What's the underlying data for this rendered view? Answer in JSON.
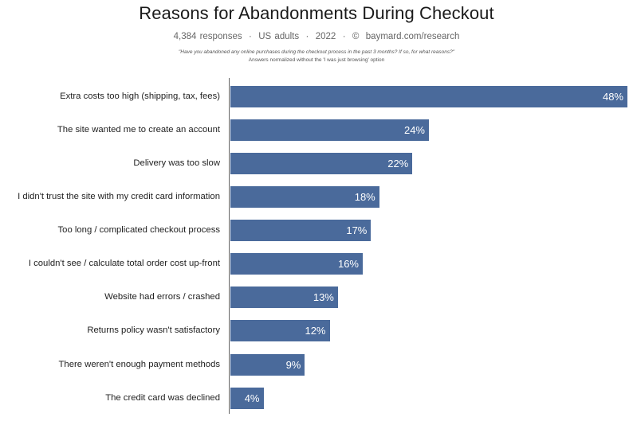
{
  "header": {
    "title": "Reasons for Abandonments During Checkout",
    "subtitle": "4,384 responses  ·  US adults  ·  2022  ·  ©  baymard.com/research",
    "question": "\"Have you abandoned any online purchases during the checkout process in the past 3 months? If so, for what reasons?\"",
    "note": "Answers normalized without the 'I was just browsing' option"
  },
  "colors": {
    "bar": "#4a6a9b",
    "bar_label": "#ffffff",
    "axis": "#666666"
  },
  "chart_data": {
    "type": "bar",
    "orientation": "horizontal",
    "title": "Reasons for Abandonments During Checkout",
    "subtitle": "4,384 responses · US adults · 2022 · © baymard.com/research",
    "annotations": [
      "\"Have you abandoned any online purchases during the checkout process in the past 3 months? If so, for what reasons?\"",
      "Answers normalized without the 'I was just browsing' option"
    ],
    "categories": [
      "Extra costs too high (shipping, tax, fees)",
      "The site wanted me to create an account",
      "Delivery was too slow",
      "I didn't trust the site with my credit card information",
      "Too long / complicated checkout process",
      "I couldn't see / calculate total order cost up-front",
      "Website had errors / crashed",
      "Returns policy wasn't satisfactory",
      "There weren't enough payment methods",
      "The credit card was declined"
    ],
    "values": [
      48,
      24,
      22,
      18,
      17,
      16,
      13,
      12,
      9,
      4
    ],
    "value_labels": [
      "48%",
      "24%",
      "22%",
      "18%",
      "17%",
      "16%",
      "13%",
      "12%",
      "9%",
      "4%"
    ],
    "xlabel": "",
    "ylabel": "",
    "xlim": [
      0,
      48
    ],
    "unit": "%",
    "grid": false,
    "legend": null
  }
}
